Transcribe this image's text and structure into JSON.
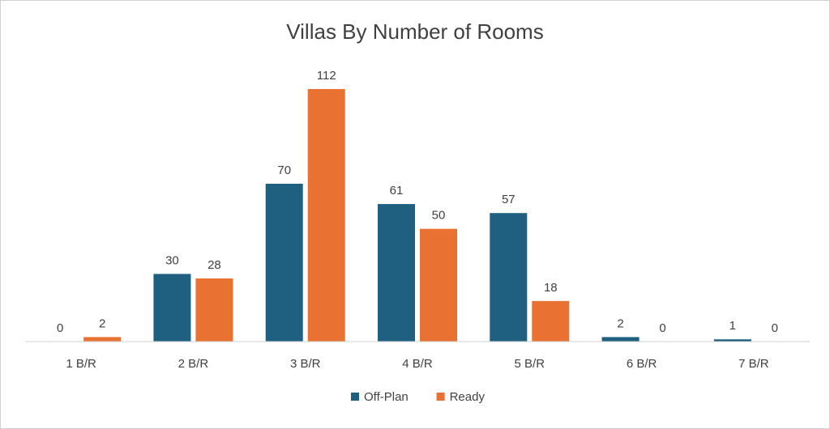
{
  "chart_data": {
    "type": "bar",
    "title": "Villas By Number of Rooms",
    "xlabel": "",
    "ylabel": "",
    "categories": [
      "1 B/R",
      "2 B/R",
      "3 B/R",
      "4 B/R",
      "5 B/R",
      "6 B/R",
      "7 B/R"
    ],
    "series": [
      {
        "name": "Off-Plan",
        "color": "#1f5f80",
        "values": [
          0,
          30,
          70,
          61,
          57,
          2,
          1
        ]
      },
      {
        "name": "Ready",
        "color": "#e97132",
        "values": [
          2,
          28,
          112,
          50,
          18,
          0,
          0
        ]
      }
    ],
    "ylim": [
      0,
      112
    ],
    "grid": false,
    "legend_position": "bottom",
    "data_labels": true
  }
}
